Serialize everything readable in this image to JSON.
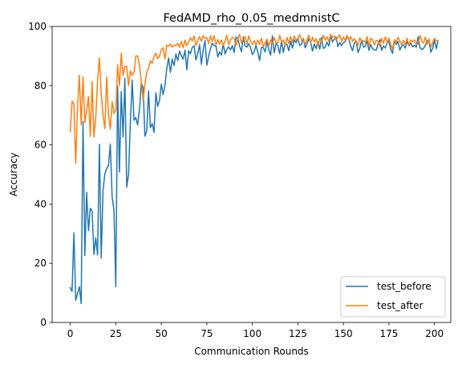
{
  "chart_data": {
    "type": "line",
    "title": "FedAMD_rho_0.05_medmnistC",
    "xlabel": "Communication Rounds",
    "ylabel": "Accuracy",
    "xlim": [
      -9.95,
      208.95
    ],
    "ylim": [
      0,
      100
    ],
    "xticks": [
      "0",
      "25",
      "50",
      "75",
      "100",
      "125",
      "150",
      "175",
      "200"
    ],
    "yticks": [
      "0",
      "20",
      "40",
      "60",
      "80",
      "100"
    ],
    "grid": false,
    "legend_position": "lower right",
    "series": [
      {
        "name": "test_before",
        "color": "#1f77b4",
        "values": [
          11.8,
          10.5,
          30.3,
          7.5,
          9.8,
          12.1,
          6.4,
          68.0,
          22.6,
          44.0,
          31.0,
          38.6,
          37.6,
          23.0,
          28.6,
          22.8,
          60.2,
          21.8,
          44.6,
          50.2,
          52.0,
          53.0,
          60.3,
          42.3,
          38.0,
          12.1,
          79.8,
          50.8,
          78.0,
          62.7,
          82.5,
          45.7,
          50.0,
          67.6,
          81.9,
          68.3,
          69.2,
          66.7,
          72.0,
          80.8,
          79.5,
          62.9,
          64.8,
          78.2,
          65.8,
          67.2,
          64.2,
          77.6,
          73.0,
          75.0,
          80.5,
          77.0,
          80.0,
          85.8,
          89.4,
          84.5,
          89.0,
          86.8,
          90.7,
          88.5,
          91.7,
          90.1,
          89.0,
          92.0,
          85.4,
          91.8,
          90.8,
          93.0,
          93.4,
          88.7,
          90.8,
          93.8,
          87.2,
          92.1,
          95.3,
          86.9,
          90.0,
          92.5,
          94.4,
          93.5,
          93.5,
          89.7,
          91.4,
          90.3,
          94.1,
          90.7,
          92.3,
          93.1,
          92.1,
          93.5,
          91.2,
          96.4,
          96.0,
          93.3,
          91.5,
          96.5,
          93.5,
          93.0,
          94.2,
          92.8,
          90.5,
          91.4,
          93.8,
          91.2,
          88.5,
          93.0,
          92.8,
          91.4,
          95.0,
          92.1,
          90.3,
          96.8,
          91.1,
          94.3,
          93.5,
          90.8,
          95.1,
          91.2,
          94.1,
          93.9,
          91.8,
          95.0,
          92.7,
          95.5,
          94.5,
          96.1,
          93.6,
          94.0,
          96.0,
          92.8,
          94.1,
          95.8,
          94.7,
          91.7,
          94.1,
          92.5,
          94.8,
          92.3,
          96.3,
          92.6,
          93.0,
          94.7,
          93.4,
          96.8,
          94.8,
          95.7,
          96.4,
          93.2,
          94.6,
          93.5,
          94.6,
          94.9,
          96.5,
          95.8,
          93.3,
          91.8,
          94.3,
          95.1,
          91.2,
          92.6,
          95.4,
          93.0,
          93.3,
          95.1,
          91.9,
          93.9,
          92.5,
          92.1,
          92.0,
          94.2,
          95.6,
          91.9,
          93.4,
          92.7,
          94.5,
          95.0,
          92.2,
          90.9,
          95.3,
          93.9,
          94.9,
          92.0,
          93.5,
          93.8,
          92.7,
          95.0,
          93.4,
          94.4,
          93.1,
          93.7,
          93.0,
          96.5,
          92.9,
          92.2,
          92.6,
          93.7,
          95.1,
          95.4,
          91.3,
          92.6,
          95.4,
          92.5,
          95.3
        ]
      },
      {
        "name": "test_after",
        "color": "#ff7f0e",
        "values": [
          64.5,
          74.8,
          73.8,
          53.8,
          73.0,
          83.5,
          66.8,
          83.0,
          67.5,
          71.5,
          76.3,
          62.9,
          81.3,
          62.7,
          69.2,
          81.8,
          89.4,
          77.5,
          69.8,
          65.5,
          83.0,
          70.0,
          65.3,
          74.6,
          70.6,
          71.8,
          87.0,
          80.0,
          91.0,
          83.4,
          86.5,
          86.5,
          80.0,
          85.0,
          83.5,
          84.5,
          90.0,
          90.0,
          86.8,
          81.5,
          75.0,
          80.5,
          84.5,
          86.0,
          88.4,
          87.5,
          90.0,
          91.0,
          89.1,
          90.0,
          92.2,
          92.8,
          89.0,
          93.7,
          93.3,
          94.1,
          93.0,
          93.7,
          93.5,
          94.3,
          93.0,
          95.0,
          92.8,
          95.4,
          93.5,
          94.7,
          96.2,
          95.1,
          96.8,
          93.5,
          95.3,
          96.6,
          95.0,
          96.9,
          96.0,
          96.2,
          94.2,
          96.9,
          95.0,
          96.9,
          93.9,
          95.6,
          94.0,
          95.4,
          93.7,
          95.0,
          97.0,
          93.8,
          95.5,
          96.3,
          95.8,
          93.6,
          95.8,
          97.3,
          94.4,
          96.0,
          96.6,
          94.0,
          96.8,
          95.0,
          93.9,
          95.2,
          93.7,
          95.4,
          93.9,
          96.0,
          93.0,
          94.6,
          95.7,
          93.6,
          95.5,
          94.2,
          96.2,
          94.6,
          94.4,
          97.0,
          94.8,
          95.4,
          93.5,
          96.3,
          94.3,
          96.6,
          94.6,
          96.8,
          95.5,
          95.8,
          97.2,
          95.2,
          95.7,
          94.1,
          95.5,
          97.1,
          94.3,
          96.4,
          94.8,
          95.9,
          93.5,
          96.0,
          94.8,
          97.0,
          95.4,
          96.5,
          94.9,
          97.3,
          96.2,
          96.8,
          95.4,
          96.3,
          97.2,
          95.0,
          96.5,
          95.3,
          97.0,
          95.4,
          96.6,
          95.0,
          95.9,
          94.8,
          93.5,
          96.2,
          95.0,
          95.2,
          94.5,
          96.6,
          93.4,
          96.0,
          95.5,
          93.7,
          95.4,
          94.9,
          93.2,
          96.0,
          94.3,
          96.5,
          94.6,
          96.1,
          93.8,
          92.3,
          95.6,
          94.5,
          96.4,
          95.0,
          93.9,
          95.3,
          94.0,
          96.0,
          93.5,
          95.5,
          94.8,
          95.5,
          94.0,
          94.0,
          97.0,
          95.0,
          94.4,
          96.4,
          94.0,
          95.8,
          93.0,
          94.5,
          96.0,
          95.2,
          95.3
        ]
      }
    ]
  }
}
